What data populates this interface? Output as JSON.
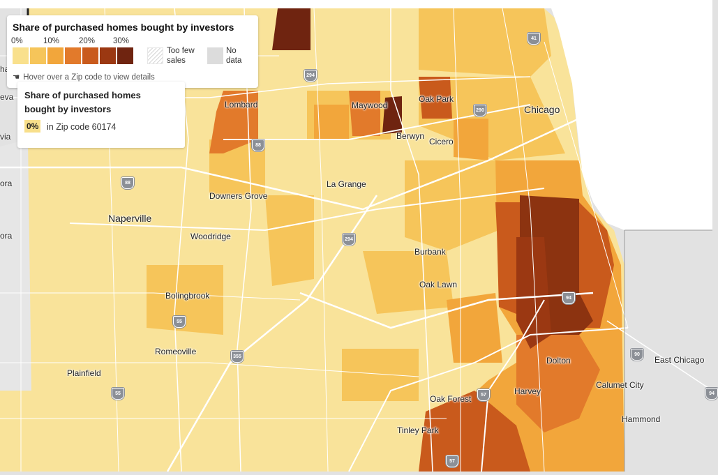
{
  "legend": {
    "title": "Share of purchased homes bought by investors",
    "ticks": [
      "0%",
      "10%",
      "20%",
      "30%"
    ],
    "colors": [
      "#f9e08c",
      "#f6c55a",
      "#f2a63b",
      "#e27a2b",
      "#c95a1c",
      "#9b3812",
      "#6f2410"
    ],
    "too_few_sales": "Too few sales",
    "no_data": "No data",
    "hover_hint": "Hover over a Zip code to view details"
  },
  "tooltip": {
    "title": "Share of purchased homes bought by investors",
    "value": "0%",
    "zip_text": "in Zip code 60174"
  },
  "places": [
    "Lombard",
    "Maywood",
    "Oak Park",
    "Chicago",
    "Berwyn",
    "Cicero",
    "La Grange",
    "Downers Grove",
    "Naperville",
    "Woodridge",
    "Burbank",
    "Oak Lawn",
    "Bolingbrook",
    "Romeoville",
    "Plainfield",
    "Dolton",
    "East Chicago",
    "Calumet City",
    "Harvey",
    "Oak Forest",
    "Hammond",
    "Tinley Park"
  ],
  "edge_labels": [
    "eva",
    "via",
    "ora",
    "ora",
    "ha"
  ],
  "shields": [
    "41",
    "294",
    "290",
    "88",
    "88",
    "294",
    "55",
    "94",
    "355",
    "55",
    "57",
    "90",
    "57",
    "94"
  ],
  "colors": {
    "water": "#ffffff",
    "outside": "#e2e2e2",
    "road": "#ffffff",
    "shield": "#8b8f96"
  }
}
